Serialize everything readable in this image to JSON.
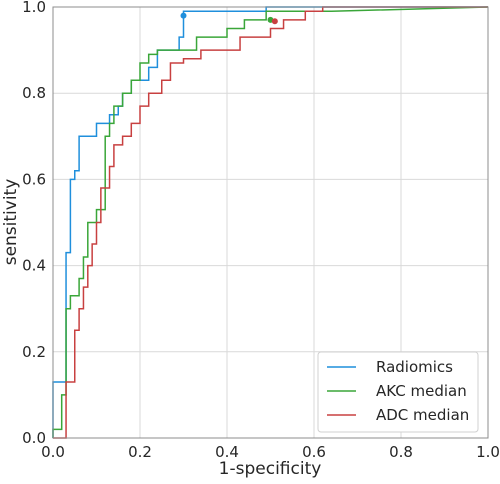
{
  "chart_data": {
    "type": "line",
    "title": "",
    "xlabel": "1-specificity",
    "ylabel": "sensitivity",
    "xlim": [
      0,
      1
    ],
    "ylim": [
      0,
      1
    ],
    "xticks": [
      "0.0",
      "0.2",
      "0.4",
      "0.6",
      "0.8",
      "1.0"
    ],
    "yticks": [
      "0.0",
      "0.2",
      "0.4",
      "0.6",
      "0.8",
      "1.0"
    ],
    "grid": true,
    "legend": "lower-right",
    "series": [
      {
        "name": "Radiomics",
        "color": "#1f8fdc",
        "x": [
          0.0,
          0.0,
          0.03,
          0.03,
          0.04,
          0.04,
          0.05,
          0.05,
          0.06,
          0.06,
          0.1,
          0.1,
          0.13,
          0.13,
          0.15,
          0.15,
          0.16,
          0.16,
          0.18,
          0.18,
          0.22,
          0.22,
          0.24,
          0.24,
          0.29,
          0.29,
          0.3,
          0.3,
          0.3,
          0.49,
          0.49,
          0.64,
          1.0
        ],
        "y": [
          0.0,
          0.13,
          0.13,
          0.43,
          0.43,
          0.6,
          0.6,
          0.62,
          0.62,
          0.7,
          0.7,
          0.73,
          0.73,
          0.75,
          0.75,
          0.77,
          0.77,
          0.8,
          0.8,
          0.83,
          0.83,
          0.86,
          0.86,
          0.9,
          0.9,
          0.93,
          0.93,
          0.98,
          0.99,
          0.99,
          1.0,
          1.0,
          1.0
        ],
        "marker": {
          "x": 0.3,
          "y": 0.98
        }
      },
      {
        "name": "AKC median",
        "color": "#3aa639",
        "x": [
          0.0,
          0.0,
          0.02,
          0.02,
          0.03,
          0.03,
          0.04,
          0.04,
          0.06,
          0.06,
          0.07,
          0.07,
          0.08,
          0.08,
          0.1,
          0.1,
          0.12,
          0.12,
          0.13,
          0.13,
          0.14,
          0.14,
          0.16,
          0.16,
          0.18,
          0.18,
          0.2,
          0.2,
          0.22,
          0.22,
          0.24,
          0.24,
          0.33,
          0.33,
          0.4,
          0.4,
          0.44,
          0.44,
          0.49,
          0.49,
          0.64,
          1.0
        ],
        "y": [
          0.0,
          0.02,
          0.02,
          0.1,
          0.1,
          0.3,
          0.3,
          0.33,
          0.33,
          0.37,
          0.37,
          0.42,
          0.42,
          0.5,
          0.5,
          0.53,
          0.53,
          0.7,
          0.7,
          0.73,
          0.73,
          0.77,
          0.77,
          0.8,
          0.8,
          0.83,
          0.83,
          0.87,
          0.87,
          0.89,
          0.89,
          0.9,
          0.9,
          0.93,
          0.93,
          0.95,
          0.95,
          0.97,
          0.97,
          0.99,
          0.99,
          1.0
        ],
        "marker": {
          "x": 0.5,
          "y": 0.97
        }
      },
      {
        "name": "ADC median",
        "color": "#c84040",
        "x": [
          0.0,
          0.0,
          0.03,
          0.03,
          0.05,
          0.05,
          0.06,
          0.06,
          0.07,
          0.07,
          0.08,
          0.08,
          0.09,
          0.09,
          0.1,
          0.1,
          0.11,
          0.11,
          0.13,
          0.13,
          0.14,
          0.14,
          0.16,
          0.16,
          0.18,
          0.18,
          0.2,
          0.2,
          0.22,
          0.22,
          0.25,
          0.25,
          0.27,
          0.27,
          0.3,
          0.3,
          0.34,
          0.34,
          0.43,
          0.43,
          0.5,
          0.5,
          0.53,
          0.53,
          0.58,
          0.58,
          0.62,
          0.62,
          1.0
        ],
        "y": [
          0.0,
          0.0,
          0.0,
          0.13,
          0.13,
          0.25,
          0.25,
          0.3,
          0.3,
          0.35,
          0.35,
          0.4,
          0.4,
          0.45,
          0.45,
          0.5,
          0.5,
          0.58,
          0.58,
          0.63,
          0.63,
          0.68,
          0.68,
          0.7,
          0.7,
          0.73,
          0.73,
          0.77,
          0.77,
          0.8,
          0.8,
          0.83,
          0.83,
          0.87,
          0.87,
          0.88,
          0.88,
          0.9,
          0.9,
          0.93,
          0.93,
          0.95,
          0.95,
          0.97,
          0.97,
          0.99,
          0.99,
          1.0,
          1.0
        ],
        "marker": {
          "x": 0.51,
          "y": 0.967
        }
      }
    ]
  }
}
